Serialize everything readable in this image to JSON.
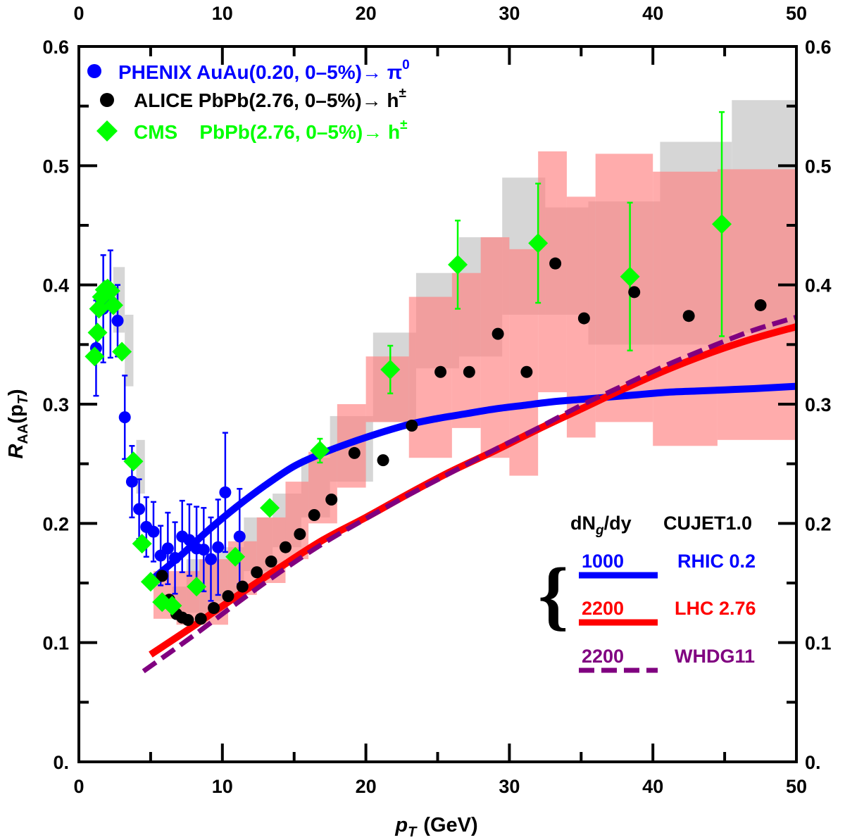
{
  "chart_data": {
    "type": "scatter",
    "xlabel": "p",
    "xlabel_sub": "T",
    "xlabel_unit": "(GeV)",
    "ylabel_main": "R",
    "ylabel_sub": "AA",
    "ylabel_arg_open": "(p",
    "ylabel_arg_sub": "T",
    "ylabel_arg_close": ")",
    "xlim": [
      0,
      50
    ],
    "ylim": [
      0,
      0.6
    ],
    "x_ticks": [
      {
        "v": 0,
        "label": "0"
      },
      {
        "v": 10,
        "label": "10"
      },
      {
        "v": 20,
        "label": "20"
      },
      {
        "v": 30,
        "label": "30"
      },
      {
        "v": 40,
        "label": "40"
      },
      {
        "v": 50,
        "label": "50"
      }
    ],
    "y_ticks": [
      {
        "v": 0,
        "label": "0."
      },
      {
        "v": 0.1,
        "label": "0.1"
      },
      {
        "v": 0.2,
        "label": "0.2"
      },
      {
        "v": 0.3,
        "label": "0.3"
      },
      {
        "v": 0.4,
        "label": "0.4"
      },
      {
        "v": 0.5,
        "label": "0.5"
      },
      {
        "v": 0.6,
        "label": "0.6"
      }
    ],
    "colors": {
      "phenix": "#0000ff",
      "alice": "#000000",
      "cms": "#00ff00",
      "alice_sys": "#c8c8c8",
      "cms_sys": "#ff8080",
      "cujet_rhic": "#0000ff",
      "cujet_lhc": "#ff0000",
      "whdg": "#800080"
    },
    "legend_points": [
      {
        "name": "PHENIX",
        "text": "PHENIX AuAu(0.20, 0–5%)→ π",
        "sup": "0",
        "marker": "circle",
        "color": "#0000ff"
      },
      {
        "name": "ALICE",
        "text": "ALICE PbPb(2.76, 0–5%)→ h",
        "sup": "±",
        "marker": "circle",
        "color": "#000000"
      },
      {
        "name": "CMS",
        "text": "CMS    PbPb(2.76, 0–5%)→ h",
        "sup": "±",
        "marker": "diamond",
        "color": "#00ff00"
      }
    ],
    "legend_curves": {
      "header_left": "dN",
      "header_left_sub": "g",
      "header_left_tail": "/dy",
      "header_right": "CUJET1.0",
      "brace": "{",
      "entries": [
        {
          "num": "1000",
          "label": "RHIC 0.2",
          "color": "#0000ff",
          "dash": false
        },
        {
          "num": "2200",
          "label": "LHC 2.76",
          "color": "#ff0000",
          "dash": false
        },
        {
          "num": "2200",
          "label": "WHDG11",
          "color": "#800080",
          "dash": true
        }
      ]
    },
    "series": [
      {
        "name": "PHENIX",
        "marker": "circle",
        "points": [
          {
            "x": 1.2,
            "y": 0.347,
            "err": 0.04
          },
          {
            "x": 1.7,
            "y": 0.38,
            "err": 0.045
          },
          {
            "x": 2.2,
            "y": 0.384,
            "err": 0.045
          },
          {
            "x": 2.7,
            "y": 0.37,
            "err": 0.03
          },
          {
            "x": 3.2,
            "y": 0.289,
            "err": 0.035
          },
          {
            "x": 3.7,
            "y": 0.235,
            "err": 0.03
          },
          {
            "x": 4.2,
            "y": 0.212,
            "err": 0.025
          },
          {
            "x": 4.7,
            "y": 0.197,
            "err": 0.025
          },
          {
            "x": 5.2,
            "y": 0.193,
            "err": 0.025
          },
          {
            "x": 5.7,
            "y": 0.173,
            "err": 0.025
          },
          {
            "x": 6.2,
            "y": 0.179,
            "err": 0.03
          },
          {
            "x": 6.7,
            "y": 0.171,
            "err": 0.03
          },
          {
            "x": 7.2,
            "y": 0.189,
            "err": 0.03
          },
          {
            "x": 7.7,
            "y": 0.186,
            "err": 0.03
          },
          {
            "x": 8.2,
            "y": 0.179,
            "err": 0.035
          },
          {
            "x": 8.7,
            "y": 0.178,
            "err": 0.035
          },
          {
            "x": 9.2,
            "y": 0.17,
            "err": 0.035
          },
          {
            "x": 9.7,
            "y": 0.18,
            "err": 0.04
          },
          {
            "x": 10.2,
            "y": 0.226,
            "err": 0.05
          },
          {
            "x": 11.2,
            "y": 0.189,
            "err": 0.04
          }
        ]
      },
      {
        "name": "ALICE",
        "marker": "circle",
        "points": [
          {
            "x": 5.8,
            "y": 0.156
          },
          {
            "x": 6.3,
            "y": 0.136
          },
          {
            "x": 6.8,
            "y": 0.124
          },
          {
            "x": 7.2,
            "y": 0.121
          },
          {
            "x": 7.6,
            "y": 0.119
          },
          {
            "x": 8.5,
            "y": 0.12
          },
          {
            "x": 9.4,
            "y": 0.129
          },
          {
            "x": 10.4,
            "y": 0.139
          },
          {
            "x": 11.4,
            "y": 0.147
          },
          {
            "x": 12.4,
            "y": 0.159
          },
          {
            "x": 13.4,
            "y": 0.168
          },
          {
            "x": 14.4,
            "y": 0.18
          },
          {
            "x": 15.4,
            "y": 0.191
          },
          {
            "x": 16.4,
            "y": 0.207
          },
          {
            "x": 17.6,
            "y": 0.22
          },
          {
            "x": 19.2,
            "y": 0.259
          },
          {
            "x": 21.2,
            "y": 0.253
          },
          {
            "x": 23.2,
            "y": 0.282
          },
          {
            "x": 25.2,
            "y": 0.327
          },
          {
            "x": 27.2,
            "y": 0.327
          },
          {
            "x": 29.2,
            "y": 0.359
          },
          {
            "x": 31.2,
            "y": 0.327
          },
          {
            "x": 33.2,
            "y": 0.418
          },
          {
            "x": 35.2,
            "y": 0.372
          },
          {
            "x": 38.7,
            "y": 0.394
          },
          {
            "x": 42.5,
            "y": 0.374
          },
          {
            "x": 47.5,
            "y": 0.383
          }
        ]
      },
      {
        "name": "CMS",
        "marker": "diamond",
        "points": [
          {
            "x": 1.1,
            "y": 0.34
          },
          {
            "x": 1.3,
            "y": 0.36
          },
          {
            "x": 1.4,
            "y": 0.38
          },
          {
            "x": 1.6,
            "y": 0.39
          },
          {
            "x": 1.8,
            "y": 0.396
          },
          {
            "x": 2.0,
            "y": 0.397
          },
          {
            "x": 2.2,
            "y": 0.395
          },
          {
            "x": 2.4,
            "y": 0.383
          },
          {
            "x": 3.0,
            "y": 0.344
          },
          {
            "x": 3.8,
            "y": 0.252
          },
          {
            "x": 4.4,
            "y": 0.183
          },
          {
            "x": 5.0,
            "y": 0.151
          },
          {
            "x": 5.8,
            "y": 0.134
          },
          {
            "x": 6.5,
            "y": 0.131
          },
          {
            "x": 8.2,
            "y": 0.147
          },
          {
            "x": 10.9,
            "y": 0.172
          },
          {
            "x": 13.3,
            "y": 0.213
          },
          {
            "x": 16.8,
            "y": 0.261,
            "err": 0.01
          },
          {
            "x": 21.7,
            "y": 0.329,
            "err": 0.02
          },
          {
            "x": 26.4,
            "y": 0.417,
            "err": 0.037
          },
          {
            "x": 32.0,
            "y": 0.435,
            "err": 0.05
          },
          {
            "x": 38.4,
            "y": 0.407,
            "err": 0.062
          },
          {
            "x": 44.8,
            "y": 0.451,
            "err": 0.094
          }
        ]
      }
    ],
    "systematic_bands": {
      "alice": [
        {
          "x0": 3.2,
          "x1": 3.8,
          "y0": 0.315,
          "y1": 0.375
        },
        {
          "x0": 2.4,
          "x1": 3.2,
          "y0": 0.36,
          "y1": 0.415
        },
        {
          "x0": 4.0,
          "x1": 4.6,
          "y0": 0.225,
          "y1": 0.27
        },
        {
          "x0": 6.5,
          "x1": 7.5,
          "y0": 0.12,
          "y1": 0.147
        },
        {
          "x0": 7.5,
          "x1": 9.5,
          "y0": 0.125,
          "y1": 0.17
        },
        {
          "x0": 9.5,
          "x1": 11.5,
          "y0": 0.135,
          "y1": 0.18
        },
        {
          "x0": 11.5,
          "x1": 13.5,
          "y0": 0.16,
          "y1": 0.205
        },
        {
          "x0": 13.5,
          "x1": 15.5,
          "y0": 0.18,
          "y1": 0.225
        },
        {
          "x0": 15.5,
          "x1": 17.5,
          "y0": 0.205,
          "y1": 0.255
        },
        {
          "x0": 17.5,
          "x1": 20.5,
          "y0": 0.235,
          "y1": 0.29
        },
        {
          "x0": 20.5,
          "x1": 23.5,
          "y0": 0.285,
          "y1": 0.36
        },
        {
          "x0": 23.5,
          "x1": 26.5,
          "y0": 0.33,
          "y1": 0.41
        },
        {
          "x0": 26.5,
          "x1": 29.5,
          "y0": 0.34,
          "y1": 0.44
        },
        {
          "x0": 29.5,
          "x1": 32.5,
          "y0": 0.375,
          "y1": 0.49
        },
        {
          "x0": 32.5,
          "x1": 35.5,
          "y0": 0.375,
          "y1": 0.465
        },
        {
          "x0": 35.5,
          "x1": 40.5,
          "y0": 0.35,
          "y1": 0.47
        },
        {
          "x0": 40.5,
          "x1": 45.5,
          "y0": 0.35,
          "y1": 0.52
        },
        {
          "x0": 45.5,
          "x1": 50,
          "y0": 0.36,
          "y1": 0.555
        }
      ],
      "cms": [
        {
          "x0": 5.2,
          "x1": 6.8,
          "y0": 0.12,
          "y1": 0.16
        },
        {
          "x0": 6.8,
          "x1": 8.4,
          "y0": 0.115,
          "y1": 0.16
        },
        {
          "x0": 8.4,
          "x1": 10.4,
          "y0": 0.115,
          "y1": 0.17
        },
        {
          "x0": 10.4,
          "x1": 12.4,
          "y0": 0.14,
          "y1": 0.185
        },
        {
          "x0": 12.4,
          "x1": 14.4,
          "y0": 0.15,
          "y1": 0.205
        },
        {
          "x0": 14.4,
          "x1": 16.0,
          "y0": 0.17,
          "y1": 0.235
        },
        {
          "x0": 16.0,
          "x1": 18.0,
          "y0": 0.2,
          "y1": 0.26
        },
        {
          "x0": 18.0,
          "x1": 20.0,
          "y0": 0.23,
          "y1": 0.3
        },
        {
          "x0": 20.0,
          "x1": 23.0,
          "y0": 0.285,
          "y1": 0.34
        },
        {
          "x0": 23.0,
          "x1": 26.0,
          "y0": 0.255,
          "y1": 0.39
        },
        {
          "x0": 26.0,
          "x1": 28.0,
          "y0": 0.28,
          "y1": 0.41
        },
        {
          "x0": 28.0,
          "x1": 30.0,
          "y0": 0.255,
          "y1": 0.44
        },
        {
          "x0": 30.0,
          "x1": 32.0,
          "y0": 0.24,
          "y1": 0.43
        },
        {
          "x0": 32.0,
          "x1": 34.0,
          "y0": 0.31,
          "y1": 0.512
        },
        {
          "x0": 34.0,
          "x1": 36.0,
          "y0": 0.272,
          "y1": 0.474
        },
        {
          "x0": 36.0,
          "x1": 40.0,
          "y0": 0.285,
          "y1": 0.51
        },
        {
          "x0": 40.0,
          "x1": 44.5,
          "y0": 0.265,
          "y1": 0.495
        },
        {
          "x0": 44.5,
          "x1": 50,
          "y0": 0.27,
          "y1": 0.497
        }
      ]
    },
    "curves": [
      {
        "name": "CUJET RHIC 0.2",
        "color": "#0000ff",
        "dash": false,
        "x": [
          5,
          7,
          9,
          11,
          13,
          15,
          17,
          19,
          21,
          23,
          25,
          27,
          29,
          31,
          33,
          35,
          37,
          39,
          41,
          43,
          45,
          47,
          50
        ],
        "y": [
          0.152,
          0.172,
          0.194,
          0.214,
          0.232,
          0.248,
          0.259,
          0.268,
          0.276,
          0.283,
          0.288,
          0.292,
          0.296,
          0.299,
          0.302,
          0.304,
          0.306,
          0.308,
          0.31,
          0.311,
          0.312,
          0.313,
          0.315
        ]
      },
      {
        "name": "CUJET LHC 2.76",
        "color": "#ff0000",
        "dash": false,
        "x": [
          5,
          8,
          11,
          14,
          17,
          20,
          23,
          26,
          29,
          32,
          35,
          38,
          41,
          44,
          47,
          50
        ],
        "y": [
          0.09,
          0.114,
          0.139,
          0.163,
          0.186,
          0.205,
          0.225,
          0.244,
          0.261,
          0.279,
          0.296,
          0.313,
          0.329,
          0.343,
          0.355,
          0.365
        ]
      },
      {
        "name": "WHDG11",
        "color": "#800080",
        "dash": true,
        "x": [
          4.5,
          8,
          11,
          14,
          17,
          20,
          23,
          26,
          29,
          32,
          35,
          38,
          41,
          44,
          47,
          50
        ],
        "y": [
          0.076,
          0.106,
          0.133,
          0.159,
          0.183,
          0.204,
          0.224,
          0.243,
          0.262,
          0.28,
          0.299,
          0.316,
          0.333,
          0.348,
          0.362,
          0.373
        ]
      }
    ]
  }
}
